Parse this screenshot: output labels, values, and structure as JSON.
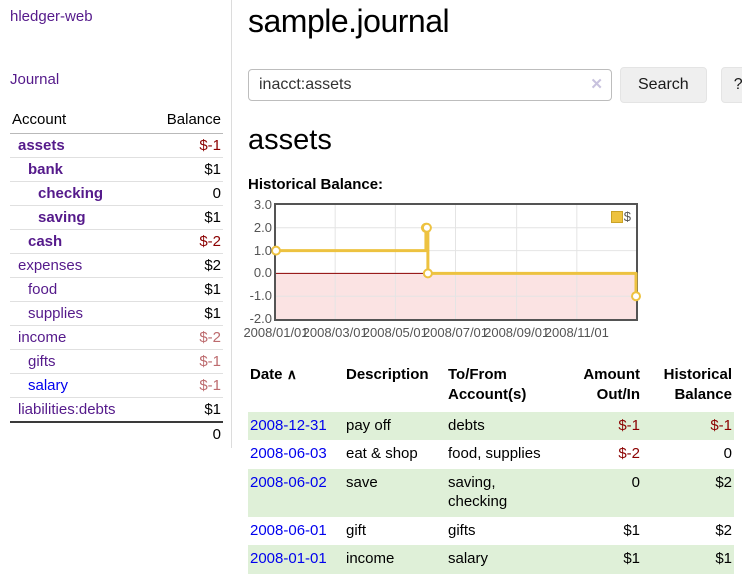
{
  "app": {
    "brand": "hledger-web"
  },
  "sidebar": {
    "journal_link": "Journal",
    "accounts_header": {
      "account": "Account",
      "balance": "Balance"
    },
    "accounts": [
      {
        "name": "assets",
        "balance": "$-1",
        "level": 0,
        "in_filter": true
      },
      {
        "name": "bank",
        "balance": "$1",
        "level": 1,
        "in_filter": true
      },
      {
        "name": "checking",
        "balance": "0",
        "level": 2,
        "in_filter": true
      },
      {
        "name": "saving",
        "balance": "$1",
        "level": 2,
        "in_filter": true
      },
      {
        "name": "cash",
        "balance": "$-2",
        "level": 1,
        "in_filter": true
      },
      {
        "name": "expenses",
        "balance": "$2",
        "level": 0,
        "in_filter": false
      },
      {
        "name": "food",
        "balance": "$1",
        "level": 1,
        "in_filter": false
      },
      {
        "name": "supplies",
        "balance": "$1",
        "level": 1,
        "in_filter": false
      },
      {
        "name": "income",
        "balance": "$-2",
        "level": 0,
        "in_filter": false
      },
      {
        "name": "gifts",
        "balance": "$-1",
        "level": 1,
        "in_filter": false
      },
      {
        "name": "salary",
        "balance": "$-1",
        "level": 1,
        "in_filter": false
      },
      {
        "name": "liabilities:debts",
        "balance": "$1",
        "level": 0,
        "in_filter": false
      }
    ],
    "total": "0"
  },
  "header": {
    "title": "sample.journal"
  },
  "search": {
    "value": "inacct:assets",
    "clear_icon": "✕",
    "search_label": "Search",
    "help_label": "?"
  },
  "account_page": {
    "heading": "assets",
    "chart_label": "Historical Balance:"
  },
  "chart_data": {
    "type": "line",
    "title": "Historical Balance",
    "step": true,
    "series": [
      {
        "name": "$",
        "color": "#EDC240",
        "points": [
          [
            "2008-01-01",
            1
          ],
          [
            "2008-06-01",
            2
          ],
          [
            "2008-06-02",
            2
          ],
          [
            "2008-06-03",
            0
          ],
          [
            "2008-12-31",
            -1
          ]
        ]
      }
    ],
    "x_range": [
      "2008-01-01",
      "2008-12-31"
    ],
    "ylim": [
      -2,
      3
    ],
    "y_ticks": [
      3,
      2,
      1,
      0,
      -1,
      -2
    ],
    "x_ticks": [
      "2008/01/01",
      "2008/03/01",
      "2008/05/01",
      "2008/07/01",
      "2008/09/01",
      "2008/11/01"
    ],
    "legend": {
      "label": "$",
      "position": "top-right"
    },
    "grid": true,
    "grid_color": "#E4E4E4",
    "negative_region_color": "#FBE3E3",
    "zero_line_color": "#8B0000",
    "border_color": "#545454"
  },
  "register_table": {
    "headers": {
      "date": "Date",
      "sort_indicator": "∧",
      "description": "Description",
      "tofrom": "To/From\nAccount(s)",
      "amount": "Amount\nOut/In",
      "historical": "Historical\nBalance"
    },
    "rows": [
      {
        "date": "2008-12-31",
        "description": "pay off",
        "accounts": "debts",
        "amount": "$-1",
        "balance": "$-1"
      },
      {
        "date": "2008-06-03",
        "description": "eat & shop",
        "accounts": "food, supplies",
        "amount": "$-2",
        "balance": "0"
      },
      {
        "date": "2008-06-02",
        "description": "save",
        "accounts": "saving, checking",
        "amount": "0",
        "balance": "$2"
      },
      {
        "date": "2008-06-01",
        "description": "gift",
        "accounts": "gifts",
        "amount": "$1",
        "balance": "$2"
      },
      {
        "date": "2008-01-01",
        "description": "income",
        "accounts": "salary",
        "amount": "$1",
        "balance": "$1"
      }
    ]
  },
  "colors": {
    "link_visited_purple": "#551A8B",
    "link_blue": "#0000EE",
    "negative_strong": "#8B0000",
    "negative_soft": "#BD6B6E",
    "row_stripe_green": "#DFF0D8",
    "series_gold": "#EDC240"
  }
}
